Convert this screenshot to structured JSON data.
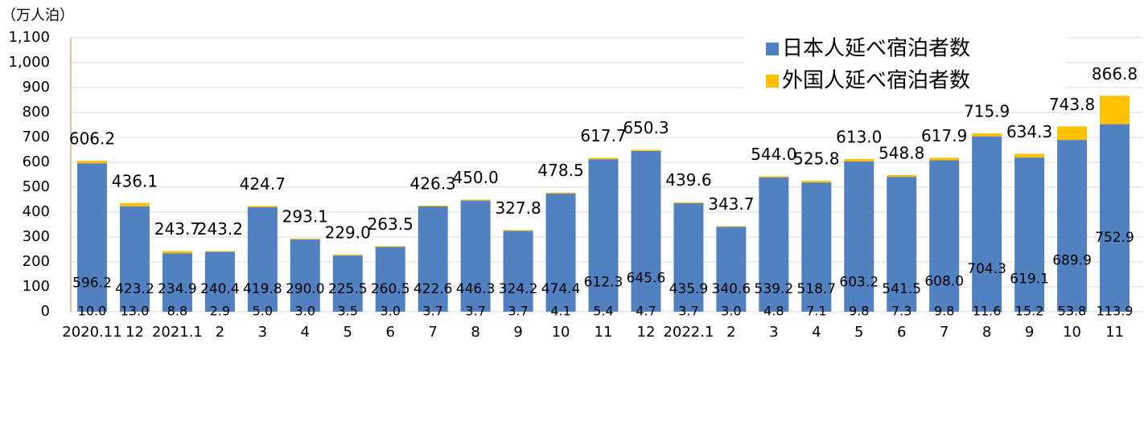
{
  "chart_data": {
    "type": "stacked-bar",
    "y_label": "（万人泊）",
    "categories": [
      "2020.11",
      "12",
      "2021.1",
      "2",
      "3",
      "4",
      "5",
      "6",
      "7",
      "8",
      "9",
      "10",
      "11",
      "12",
      "2022.1",
      "2",
      "3",
      "4",
      "5",
      "6",
      "7",
      "8",
      "9",
      "10",
      "11"
    ],
    "series": [
      {
        "name": "日本人延べ宿泊者数",
        "color": "#5181c0",
        "values": [
          596.2,
          423.2,
          234.9,
          240.4,
          419.8,
          290.0,
          225.5,
          260.5,
          422.6,
          446.3,
          324.2,
          474.4,
          612.3,
          645.6,
          435.9,
          340.6,
          539.2,
          518.7,
          603.2,
          541.5,
          608.0,
          704.3,
          619.1,
          689.9,
          752.9
        ],
        "value_labels": [
          "596.2",
          "423.2",
          "234.9",
          "240.4",
          "419.8",
          "290.0",
          "225.5",
          "260.5",
          "422.6",
          "446.3",
          "324.2",
          "474.4",
          "612.3",
          "645.6",
          "435.9",
          "340.6",
          "539.2",
          "518.7",
          "603.2",
          "541.5",
          "608.0",
          "704.3",
          "619.1",
          "689.9",
          "752.9"
        ]
      },
      {
        "name": "外国人延べ宿泊者数",
        "color": "#ffc000",
        "values": [
          10.0,
          13.0,
          8.8,
          2.9,
          5.0,
          3.0,
          3.5,
          3.0,
          3.7,
          3.7,
          3.7,
          4.1,
          5.4,
          4.7,
          3.7,
          3.0,
          4.8,
          7.1,
          9.8,
          7.3,
          9.8,
          11.6,
          15.2,
          53.8,
          113.9
        ],
        "value_labels": [
          "10.0",
          "13.0",
          "8.8",
          "2.9",
          "5.0",
          "3.0",
          "3.5",
          "3.0",
          "3.7",
          "3.7",
          "3.7",
          "4.1",
          "5.4",
          "4.7",
          "3.7",
          "3.0",
          "4.8",
          "7.1",
          "9.8",
          "7.3",
          "9.8",
          "11.6",
          "15.2",
          "53.8",
          "113.9"
        ]
      }
    ],
    "totals": {
      "color": "#2e75b6",
      "values": [
        606.2,
        436.1,
        243.7,
        243.2,
        424.7,
        293.1,
        229.0,
        263.5,
        426.3,
        450.0,
        327.8,
        478.5,
        617.7,
        650.3,
        439.6,
        343.7,
        544.0,
        525.8,
        613.0,
        548.8,
        617.9,
        715.9,
        634.3,
        743.8,
        866.8
      ],
      "value_labels": [
        "606.2",
        "436.1",
        "243.7",
        "243.2",
        "424.7",
        "293.1",
        "229.0",
        "263.5",
        "426.3",
        "450.0",
        "327.8",
        "478.5",
        "617.7",
        "650.3",
        "439.6",
        "343.7",
        "544.0",
        "525.8",
        "613.0",
        "548.8",
        "617.9",
        "715.9",
        "634.3",
        "743.8",
        "866.8"
      ]
    },
    "ylim": [
      0,
      1100
    ],
    "yticks": [
      0,
      100,
      200,
      300,
      400,
      500,
      600,
      700,
      800,
      900,
      {
        "value": 1000,
        "label": "1,000"
      },
      {
        "value": 1100,
        "label": "1,100"
      }
    ],
    "grid": true,
    "legend": "top-right"
  }
}
